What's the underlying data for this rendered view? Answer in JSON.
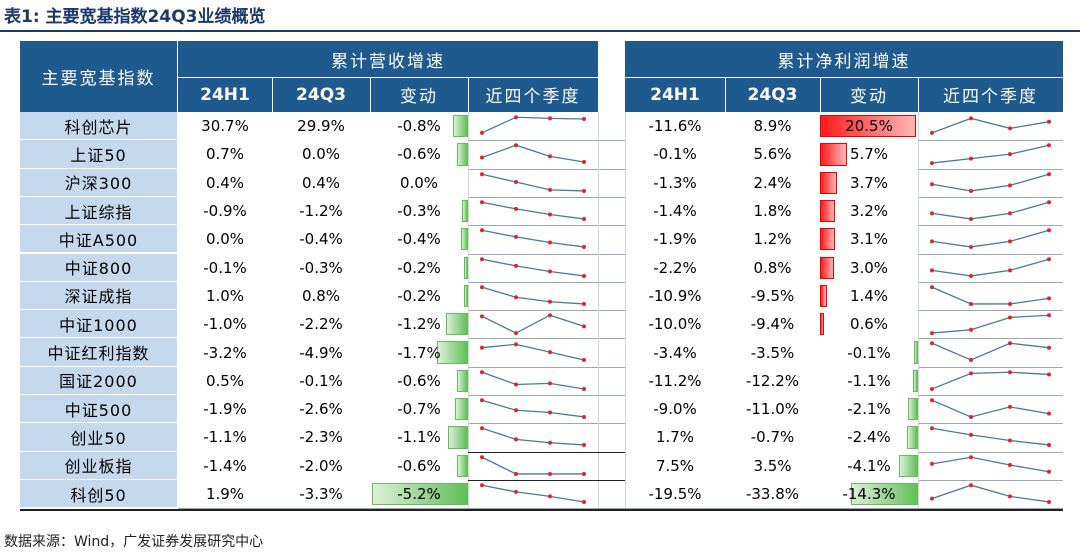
{
  "title": "表1:  主要宽基指数24Q3业绩概览",
  "source": "数据来源：Wind，广发证券发展研究中心",
  "header": {
    "index_col": "主要宽基指数",
    "group_revenue": "累计营收增速",
    "group_profit": "累计净利润增速",
    "sub_cols": [
      "24H1",
      "24Q3",
      "变动",
      "近四个季度"
    ]
  },
  "colors": {
    "header_bg": "#1f5a8e",
    "name_bg": "#c5d9ee",
    "pos_bar": "#ff1a1a",
    "neg_bar": "#63be5a",
    "spark_line": "#4a78a8",
    "spark_dot": "#e0242a"
  },
  "rows": [
    {
      "name": "科创芯片",
      "rev_h1": "30.7%",
      "rev_q3": "29.9%",
      "rev_chg": "-0.8%",
      "rev_chg_v": -0.8,
      "rev_spark": [
        0.2,
        0.9,
        0.85,
        0.82
      ],
      "pro_h1": "-11.6%",
      "pro_q3": "8.9%",
      "pro_chg": "20.5%",
      "pro_chg_v": 20.5,
      "pro_spark": [
        0.2,
        0.85,
        0.4,
        0.7
      ]
    },
    {
      "name": "上证50",
      "rev_h1": "0.7%",
      "rev_q3": "0.0%",
      "rev_chg": "-0.6%",
      "rev_chg_v": -0.6,
      "rev_spark": [
        0.35,
        0.9,
        0.4,
        0.15
      ],
      "pro_h1": "-0.1%",
      "pro_q3": "5.6%",
      "pro_chg": "5.7%",
      "pro_chg_v": 5.7,
      "pro_spark": [
        0.1,
        0.3,
        0.5,
        0.9
      ]
    },
    {
      "name": "沪深300",
      "rev_h1": "0.4%",
      "rev_q3": "0.4%",
      "rev_chg": "0.0%",
      "rev_chg_v": 0.0,
      "rev_spark": [
        0.9,
        0.55,
        0.2,
        0.15
      ],
      "pro_h1": "-1.3%",
      "pro_q3": "2.4%",
      "pro_chg": "3.7%",
      "pro_chg_v": 3.7,
      "pro_spark": [
        0.45,
        0.15,
        0.4,
        0.9
      ]
    },
    {
      "name": "上证综指",
      "rev_h1": "-0.9%",
      "rev_q3": "-1.2%",
      "rev_chg": "-0.3%",
      "rev_chg_v": -0.3,
      "rev_spark": [
        0.9,
        0.6,
        0.35,
        0.15
      ],
      "pro_h1": "-1.4%",
      "pro_q3": "1.8%",
      "pro_chg": "3.2%",
      "pro_chg_v": 3.2,
      "pro_spark": [
        0.4,
        0.15,
        0.4,
        0.9
      ]
    },
    {
      "name": "中证A500",
      "rev_h1": "0.0%",
      "rev_q3": "-0.4%",
      "rev_chg": "-0.4%",
      "rev_chg_v": -0.4,
      "rev_spark": [
        0.9,
        0.6,
        0.35,
        0.15
      ],
      "pro_h1": "-1.9%",
      "pro_q3": "1.2%",
      "pro_chg": "3.1%",
      "pro_chg_v": 3.1,
      "pro_spark": [
        0.4,
        0.15,
        0.4,
        0.9
      ]
    },
    {
      "name": "中证800",
      "rev_h1": "-0.1%",
      "rev_q3": "-0.3%",
      "rev_chg": "-0.2%",
      "rev_chg_v": -0.2,
      "rev_spark": [
        0.9,
        0.6,
        0.35,
        0.15
      ],
      "pro_h1": "-2.2%",
      "pro_q3": "0.8%",
      "pro_chg": "3.0%",
      "pro_chg_v": 3.0,
      "pro_spark": [
        0.4,
        0.15,
        0.4,
        0.9
      ]
    },
    {
      "name": "深证成指",
      "rev_h1": "1.0%",
      "rev_q3": "0.8%",
      "rev_chg": "-0.2%",
      "rev_chg_v": -0.2,
      "rev_spark": [
        0.9,
        0.45,
        0.25,
        0.15
      ],
      "pro_h1": "-10.9%",
      "pro_q3": "-9.5%",
      "pro_chg": "1.4%",
      "pro_chg_v": 1.4,
      "pro_spark": [
        0.9,
        0.15,
        0.15,
        0.4
      ]
    },
    {
      "name": "中证1000",
      "rev_h1": "-1.0%",
      "rev_q3": "-2.2%",
      "rev_chg": "-1.2%",
      "rev_chg_v": -1.2,
      "rev_spark": [
        0.85,
        0.1,
        0.9,
        0.4
      ],
      "pro_h1": "-10.0%",
      "pro_q3": "-9.4%",
      "pro_chg": "0.6%",
      "pro_chg_v": 0.6,
      "pro_spark": [
        0.1,
        0.25,
        0.8,
        0.9
      ]
    },
    {
      "name": "中证红利指数",
      "rev_h1": "-3.2%",
      "rev_q3": "-4.9%",
      "rev_chg": "-1.7%",
      "rev_chg_v": -1.7,
      "rev_spark": [
        0.7,
        0.85,
        0.5,
        0.15
      ],
      "pro_h1": "-3.4%",
      "pro_q3": "-3.5%",
      "pro_chg": "-0.1%",
      "pro_chg_v": -0.1,
      "pro_spark": [
        0.9,
        0.15,
        0.9,
        0.7
      ]
    },
    {
      "name": "国证2000",
      "rev_h1": "0.5%",
      "rev_q3": "-0.1%",
      "rev_chg": "-0.6%",
      "rev_chg_v": -0.6,
      "rev_spark": [
        0.9,
        0.35,
        0.4,
        0.15
      ],
      "pro_h1": "-11.2%",
      "pro_q3": "-12.2%",
      "pro_chg": "-1.1%",
      "pro_chg_v": -1.1,
      "pro_spark": [
        0.15,
        0.85,
        0.9,
        0.8
      ]
    },
    {
      "name": "中证500",
      "rev_h1": "-1.9%",
      "rev_q3": "-2.6%",
      "rev_chg": "-0.7%",
      "rev_chg_v": -0.7,
      "rev_spark": [
        0.9,
        0.45,
        0.35,
        0.15
      ],
      "pro_h1": "-9.0%",
      "pro_q3": "-11.0%",
      "pro_chg": "-2.1%",
      "pro_chg_v": -2.1,
      "pro_spark": [
        0.9,
        0.15,
        0.6,
        0.3
      ]
    },
    {
      "name": "创业50",
      "rev_h1": "-1.1%",
      "rev_q3": "-2.3%",
      "rev_chg": "-1.1%",
      "rev_chg_v": -1.1,
      "rev_spark": [
        0.9,
        0.4,
        0.25,
        0.15
      ],
      "pro_h1": "1.7%",
      "pro_q3": "-0.7%",
      "pro_chg": "-2.4%",
      "pro_chg_v": -2.4,
      "pro_spark": [
        0.9,
        0.6,
        0.35,
        0.15
      ]
    },
    {
      "name": "创业板指",
      "rev_h1": "-1.4%",
      "rev_q3": "-2.0%",
      "rev_chg": "-0.6%",
      "rev_chg_v": -0.6,
      "rev_spark": [
        0.9,
        0.15,
        0.15,
        0.15
      ],
      "pro_h1": "7.5%",
      "pro_q3": "3.5%",
      "pro_chg": "-4.1%",
      "pro_chg_v": -4.1,
      "pro_spark": [
        0.6,
        0.9,
        0.55,
        0.25
      ]
    },
    {
      "name": "科创50",
      "rev_h1": "1.9%",
      "rev_q3": "-3.3%",
      "rev_chg": "-5.2%",
      "rev_chg_v": -5.2,
      "rev_spark": [
        0.9,
        0.6,
        0.4,
        0.15
      ],
      "pro_h1": "-19.5%",
      "pro_q3": "-33.8%",
      "pro_chg": "-14.3%",
      "pro_chg_v": -14.3,
      "pro_spark": [
        0.3,
        0.9,
        0.4,
        0.15
      ]
    }
  ]
}
